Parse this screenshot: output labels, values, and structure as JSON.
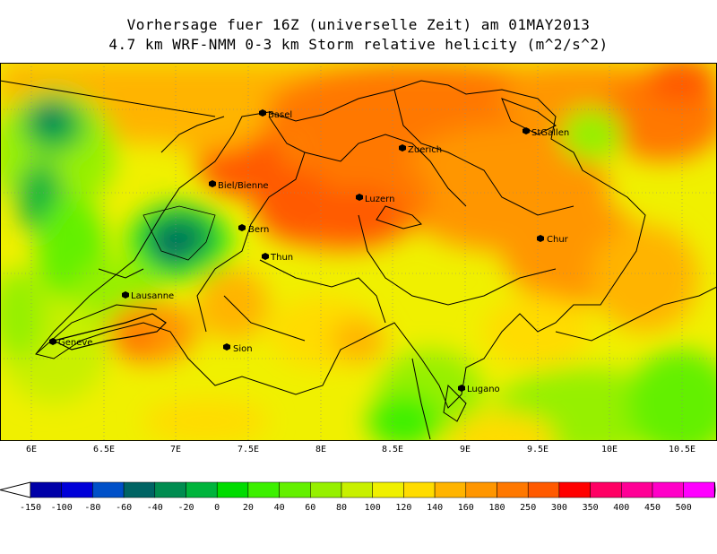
{
  "title_line1": "Vorhersage fuer 16Z (universelle Zeit) am 01MAY2013",
  "title_line2": "4.7 km WRF-NMM 0-3 km Storm relative helicity (m^2/s^2)",
  "x_ticks": [
    "6E",
    "6.5E",
    "7E",
    "7.5E",
    "8E",
    "8.5E",
    "9E",
    "9.5E",
    "10E",
    "10.5E"
  ],
  "cities": [
    {
      "name": "Basel"
    },
    {
      "name": "Zuerich"
    },
    {
      "name": "StGallen"
    },
    {
      "name": "Biel/Bienne"
    },
    {
      "name": "Luzern"
    },
    {
      "name": "Bern"
    },
    {
      "name": "Chur"
    },
    {
      "name": "Thun"
    },
    {
      "name": "Lausanne"
    },
    {
      "name": "Geneve"
    },
    {
      "name": "Sion"
    },
    {
      "name": "Lugano"
    }
  ],
  "colorbar": {
    "labels": [
      "-150",
      "-100",
      "-80",
      "-60",
      "-40",
      "-20",
      "0",
      "20",
      "40",
      "60",
      "80",
      "100",
      "120",
      "140",
      "160",
      "180",
      "250",
      "300",
      "350",
      "400",
      "450",
      "500"
    ],
    "colors": [
      "#ffffff",
      "#0000a8",
      "#0000d8",
      "#0050c8",
      "#006464",
      "#008c50",
      "#00b43c",
      "#00dc00",
      "#3cf000",
      "#64f000",
      "#96f000",
      "#c8f000",
      "#f0f000",
      "#ffdc00",
      "#ffb400",
      "#ff9600",
      "#ff7800",
      "#ff5a00",
      "#ff0000",
      "#ff0064",
      "#ff0096",
      "#ff00c8",
      "#ff00ff",
      "#e040ff"
    ]
  }
}
